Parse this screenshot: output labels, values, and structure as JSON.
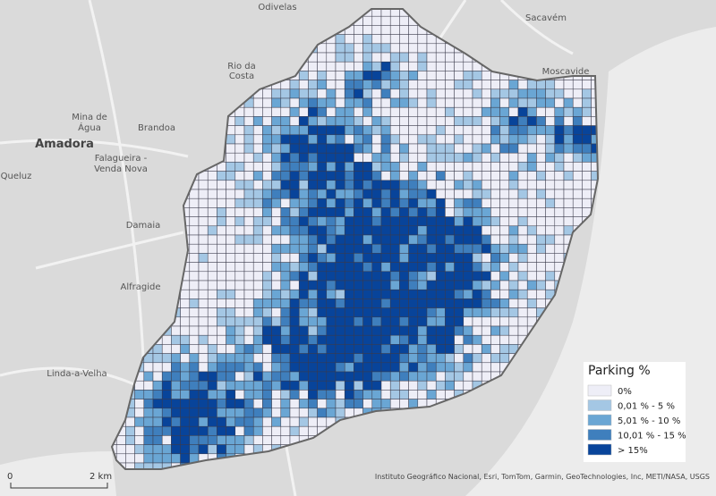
{
  "map": {
    "places": [
      "Odivelas",
      "Sacavém",
      "Moscavide",
      "Rio da",
      "Costa",
      "Mina de",
      "Água",
      "Brandoa",
      "Amadora",
      "Falagueira -",
      "Venda Nova",
      "Queluz",
      "Damaia",
      "Alfragide",
      "Linda-a-Velha"
    ],
    "legend": {
      "title": "Parking %",
      "items": [
        {
          "label": "0%",
          "color": "#eeeef7"
        },
        {
          "label": "0,01 % - 5 %",
          "color": "#a4c7e4"
        },
        {
          "label": "5,01 % - 10 %",
          "color": "#6aa6d4"
        },
        {
          "label": "10,01 % - 15 %",
          "color": "#3f7fbd"
        },
        {
          "label": "> 15%",
          "color": "#08449a"
        }
      ]
    },
    "scale_bar": {
      "start": "0",
      "end": "2 km"
    },
    "attribution": "Instituto Geográfico Nacional, Esri, TomTom, Garmin, GeoTechnologies, Inc, METI/NASA, USGS"
  }
}
